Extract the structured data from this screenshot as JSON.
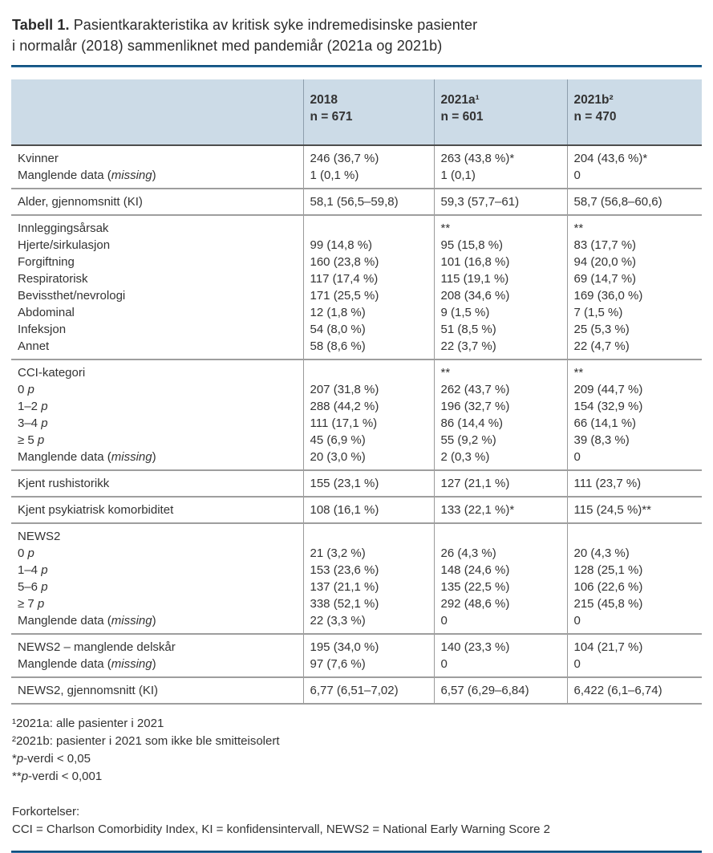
{
  "title": {
    "label_bold": "Tabell 1.",
    "line1": "Pasientkarakteristika av kritisk syke indremedisinske pasienter",
    "line2": "i normalår (2018) sammenliknet med pandemiår (2021a og 2021b)"
  },
  "table": {
    "header": {
      "corner": "",
      "columns": [
        {
          "year": "2018",
          "n": "n = 671"
        },
        {
          "year": "2021a¹",
          "n": "n = 601"
        },
        {
          "year": "2021b²",
          "n": "n = 470"
        }
      ]
    },
    "sections": [
      {
        "rows": [
          {
            "label": "Kvinner",
            "values": [
              "246 (36,7 %)",
              "263 (43,8 %)*",
              "204 (43,6 %)*"
            ]
          },
          {
            "label": "Manglende data (_missing_)",
            "values": [
              "1 (0,1 %)",
              "1 (0,1)",
              "0"
            ]
          }
        ]
      },
      {
        "rows": [
          {
            "label": "Alder, gjennomsnitt (KI)",
            "values": [
              "58,1 (56,5–59,8)",
              "59,3 (57,7–61)",
              "58,7 (56,8–60,6)"
            ]
          }
        ]
      },
      {
        "rows": [
          {
            "label": "Innleggingsårsak",
            "values": [
              "",
              "**",
              "**"
            ]
          },
          {
            "label": "Hjerte/sirkulasjon",
            "values": [
              "99 (14,8 %)",
              "95 (15,8 %)",
              "83 (17,7 %)"
            ]
          },
          {
            "label": "Forgiftning",
            "values": [
              "160 (23,8 %)",
              "101 (16,8 %)",
              "94 (20,0 %)"
            ]
          },
          {
            "label": "Respiratorisk",
            "values": [
              "117 (17,4 %)",
              "115 (19,1 %)",
              "69 (14,7 %)"
            ]
          },
          {
            "label": "Bevissthet/nevrologi",
            "values": [
              "171 (25,5 %)",
              "208 (34,6 %)",
              "169 (36,0 %)"
            ]
          },
          {
            "label": "Abdominal",
            "values": [
              "12 (1,8 %)",
              "9 (1,5 %)",
              "7 (1,5 %)"
            ]
          },
          {
            "label": "Infeksjon",
            "values": [
              "54 (8,0 %)",
              "51 (8,5 %)",
              "25 (5,3 %)"
            ]
          },
          {
            "label": "Annet",
            "values": [
              "58 (8,6 %)",
              "22 (3,7 %)",
              "22 (4,7 %)"
            ]
          }
        ]
      },
      {
        "rows": [
          {
            "label": "CCI-kategori",
            "values": [
              "",
              "**",
              "**"
            ]
          },
          {
            "label": "0 _p_",
            "values": [
              "207 (31,8 %)",
              "262 (43,7 %)",
              "209 (44,7 %)"
            ]
          },
          {
            "label": "1–2 _p_",
            "values": [
              "288 (44,2 %)",
              "196 (32,7 %)",
              "154 (32,9 %)"
            ]
          },
          {
            "label": "3–4 _p_",
            "values": [
              "111 (17,1 %)",
              "86 (14,4 %)",
              "66 (14,1 %)"
            ]
          },
          {
            "label": "≥ 5 _p_",
            "values": [
              "45 (6,9 %)",
              "55 (9,2 %)",
              "39 (8,3 %)"
            ]
          },
          {
            "label": "Manglende data (_missing_)",
            "values": [
              "20 (3,0 %)",
              "2 (0,3 %)",
              "0"
            ]
          }
        ]
      },
      {
        "rows": [
          {
            "label": "Kjent rushistorikk",
            "values": [
              "155 (23,1 %)",
              "127 (21,1 %)",
              "111 (23,7 %)"
            ]
          }
        ]
      },
      {
        "rows": [
          {
            "label": "Kjent psykiatrisk komorbiditet",
            "values": [
              "108 (16,1 %)",
              "133 (22,1 %)*",
              "115 (24,5 %)**"
            ]
          }
        ]
      },
      {
        "rows": [
          {
            "label": "NEWS2",
            "values": [
              "",
              "",
              ""
            ]
          },
          {
            "label": "0 _p_",
            "values": [
              "21 (3,2 %)",
              "26 (4,3 %)",
              "20 (4,3 %)"
            ]
          },
          {
            "label": "1–4 _p_",
            "values": [
              "153 (23,6 %)",
              "148 (24,6 %)",
              "128 (25,1 %)"
            ]
          },
          {
            "label": "5–6 _p_",
            "values": [
              "137 (21,1 %)",
              "135 (22,5 %)",
              "106 (22,6 %)"
            ]
          },
          {
            "label": "≥ 7 _p_",
            "values": [
              "338 (52,1 %)",
              "292 (48,6 %)",
              "215 (45,8 %)"
            ]
          },
          {
            "label": "Manglende data (_missing_)",
            "values": [
              "22 (3,3 %)",
              "0",
              "0"
            ]
          }
        ]
      },
      {
        "rows": [
          {
            "label": "NEWS2 – manglende delskår",
            "values": [
              "195 (34,0 %)",
              "140 (23,3 %)",
              "104 (21,7 %)"
            ]
          },
          {
            "label": "Manglende data (_missing_)",
            "values": [
              "97 (7,6 %)",
              "0",
              "0"
            ]
          }
        ]
      },
      {
        "rows": [
          {
            "label": "NEWS2, gjennomsnitt (KI)",
            "values": [
              "6,77 (6,51–7,02)",
              "6,57 (6,29–6,84)",
              "6,422 (6,1–6,74)"
            ]
          }
        ]
      }
    ]
  },
  "footnotes": {
    "items": [
      "¹2021a: alle pasienter i 2021",
      "²2021b: pasienter i 2021 som ikke ble smitteisolert",
      "*_p_-verdi < 0,05",
      "**_p_-verdi < 0,001"
    ]
  },
  "abbreviations": {
    "heading": "Forkortelser:",
    "text": "CCI = Charlson Comorbidity Index, KI = konfidensintervall, NEWS2 = National Early Warning Score 2"
  },
  "colors": {
    "header_bg": "#ccdbe7",
    "rule_blue_dark": "#0f4f7e",
    "rule_blue_light": "#4e8fc0",
    "header_underline": "#4d4d4d",
    "separator_gray": "#9e9e9e",
    "text": "#333333"
  }
}
